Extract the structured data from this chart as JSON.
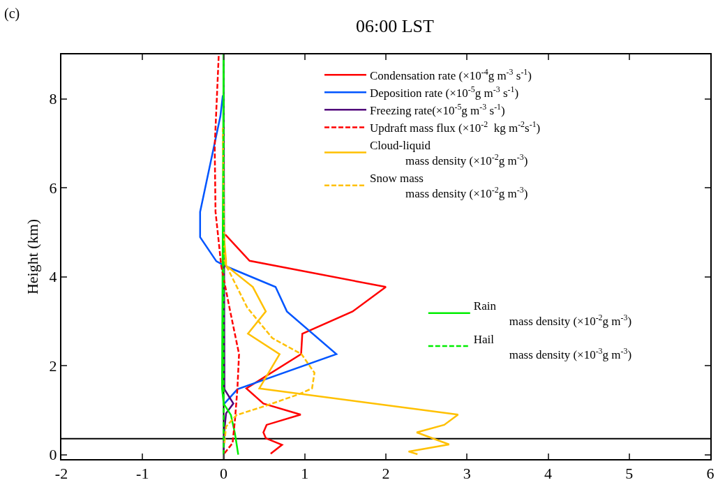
{
  "chart_data": {
    "type": "line",
    "title": "06:00 LST",
    "ylabel": "Height (km)",
    "annotations": [
      "(c)"
    ],
    "xlim": [
      -2,
      6
    ],
    "xticks": [
      -2,
      -1,
      0,
      1,
      2,
      3,
      4,
      5,
      6
    ],
    "ylim": [
      -0.1,
      9
    ],
    "yticks": [
      0,
      2,
      4,
      6,
      8
    ],
    "grid": false,
    "legend": "top right",
    "ref_lines": [
      {
        "axis": "y",
        "value": 0.36,
        "color": "#000000"
      },
      {
        "axis": "x",
        "value": 0,
        "color": "#000000"
      }
    ],
    "series": [
      {
        "name": "Condensation rate (×10$^{-4}$g m$^{-3}$ s$^{-1}$)",
        "color": "#ff0000",
        "line_style": "solid",
        "x": [
          0.58,
          0.72,
          0.52,
          0.49,
          0.53,
          0.95,
          0.49,
          0.28,
          0.955,
          0.97,
          1.59,
          2.0,
          0.32,
          0.02
        ],
        "values": [
          0.02,
          0.22,
          0.37,
          0.5,
          0.67,
          0.9,
          1.15,
          1.49,
          2.26,
          2.72,
          3.22,
          3.77,
          4.36,
          4.95
        ]
      },
      {
        "name": "Deposition rate (×10$^{-5}$g m$^{-3}$ s$^{-1}$)",
        "color": "#0055ff",
        "line_style": "solid",
        "x": [
          0.01,
          0.17,
          1.39,
          0.78,
          0.64,
          0.01,
          -0.09,
          -0.29,
          -0.29,
          -0.04,
          -0.01
        ],
        "values": [
          1.15,
          1.47,
          2.26,
          3.22,
          3.77,
          4.25,
          4.35,
          4.89,
          5.46,
          7.61,
          8.08
        ]
      },
      {
        "name": "Freezing rate(×10$^{-5}$g m$^{-3}$ s$^{-1}$)",
        "color": "#50007a",
        "line_style": "solid",
        "x": [
          0.0,
          0.01,
          0.03,
          0.12,
          0.01,
          0.0
        ],
        "values": [
          0.02,
          0.57,
          0.93,
          1.15,
          1.47,
          9.0
        ]
      },
      {
        "name": "Updraft mass flux (×10$^{-2}$  kg m$^{-2}$s$^{-1}$)",
        "color": "#ff0000",
        "line_style": "dashed",
        "x": [
          0.01,
          0.11,
          0.14,
          0.17,
          0.19,
          0.06,
          -0.03,
          -0.06,
          -0.1,
          -0.11,
          -0.06
        ],
        "values": [
          0.03,
          0.26,
          0.79,
          1.49,
          2.26,
          3.41,
          4.25,
          4.78,
          5.46,
          6.93,
          9.0
        ]
      },
      {
        "name": "Cloud-liquid\nmass density (×10$^{-2}$g m$^{-3}$)",
        "color": "#ffc000",
        "line_style": "solid",
        "x": [
          2.39,
          2.28,
          2.78,
          2.38,
          2.72,
          2.89,
          0.44,
          0.69,
          0.3,
          0.52,
          0.36,
          0.03,
          0.03,
          0.0
        ],
        "values": [
          0.01,
          0.07,
          0.23,
          0.5,
          0.67,
          0.9,
          1.49,
          2.26,
          2.72,
          3.22,
          3.77,
          4.25,
          4.36,
          5.0
        ]
      },
      {
        "name": "Snow mass\nmass density (×10$^{-2}$g m$^{-3}$)",
        "color": "#ffc000",
        "line_style": "dashed",
        "x": [
          0.01,
          0.03,
          0.16,
          0.52,
          0.93,
          1.09,
          1.12,
          0.96,
          0.6,
          0.29,
          0.06,
          0.01,
          -0.01
        ],
        "values": [
          0.26,
          0.63,
          0.89,
          1.1,
          1.36,
          1.49,
          1.84,
          2.26,
          2.62,
          3.31,
          4.15,
          4.3,
          7.35
        ]
      },
      {
        "name": "Rain\nmass density (×10$^{-2}$g m$^{-3}$)",
        "color": "#00ee00",
        "line_style": "solid",
        "x": [
          0.18,
          0.14,
          0.09,
          0.0,
          -0.02,
          0.0
        ],
        "values": [
          0.0,
          0.47,
          0.89,
          1.15,
          1.49,
          9.0
        ]
      },
      {
        "name": "Hail\nmass density (×10$^{-3}$g m$^{-3}$)",
        "color": "#00ee00",
        "line_style": "dashed",
        "x": [
          0.0,
          0.0
        ],
        "values": [
          0.0,
          9.0
        ]
      }
    ]
  }
}
